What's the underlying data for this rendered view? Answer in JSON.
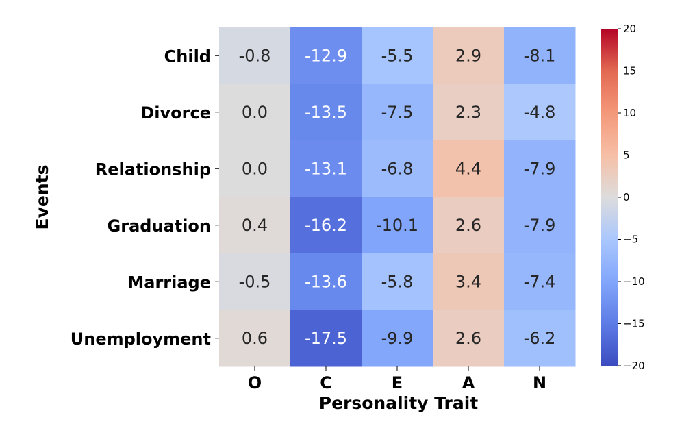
{
  "chart_data": {
    "type": "heatmap",
    "title": "",
    "xlabel": "Personality Trait",
    "ylabel": "Events",
    "x_categories": [
      "O",
      "C",
      "E",
      "A",
      "N"
    ],
    "y_categories": [
      "Child",
      "Divorce",
      "Relationship",
      "Graduation",
      "Marriage",
      "Unemployment"
    ],
    "values": [
      [
        -0.8,
        -12.9,
        -5.5,
        2.9,
        -8.1
      ],
      [
        0.0,
        -13.5,
        -7.5,
        2.3,
        -4.8
      ],
      [
        0.0,
        -13.1,
        -6.8,
        4.4,
        -7.9
      ],
      [
        0.4,
        -16.2,
        -10.1,
        2.6,
        -7.9
      ],
      [
        -0.5,
        -13.6,
        -5.8,
        3.4,
        -7.4
      ],
      [
        0.6,
        -17.5,
        -9.9,
        2.6,
        -6.2
      ]
    ],
    "value_labels": [
      [
        "-0.8",
        "-12.9",
        "-5.5",
        "2.9",
        "-8.1"
      ],
      [
        "0.0",
        "-13.5",
        "-7.5",
        "2.3",
        "-4.8"
      ],
      [
        "0.0",
        "-13.1",
        "-6.8",
        "4.4",
        "-7.9"
      ],
      [
        "0.4",
        "-16.2",
        "-10.1",
        "2.6",
        "-7.9"
      ],
      [
        "-0.5",
        "-13.6",
        "-5.8",
        "3.4",
        "-7.4"
      ],
      [
        "0.6",
        "-17.5",
        "-9.9",
        "2.6",
        "-6.2"
      ]
    ],
    "colormap": "coolwarm",
    "vmin": -20,
    "vmax": 20,
    "colorbar_ticks": [
      "−20",
      "−15",
      "−10",
      "−5",
      "0",
      "5",
      "10",
      "15",
      "20"
    ],
    "colorbar_values": [
      -20,
      -15,
      -10,
      -5,
      0,
      5,
      10,
      15,
      20
    ]
  }
}
